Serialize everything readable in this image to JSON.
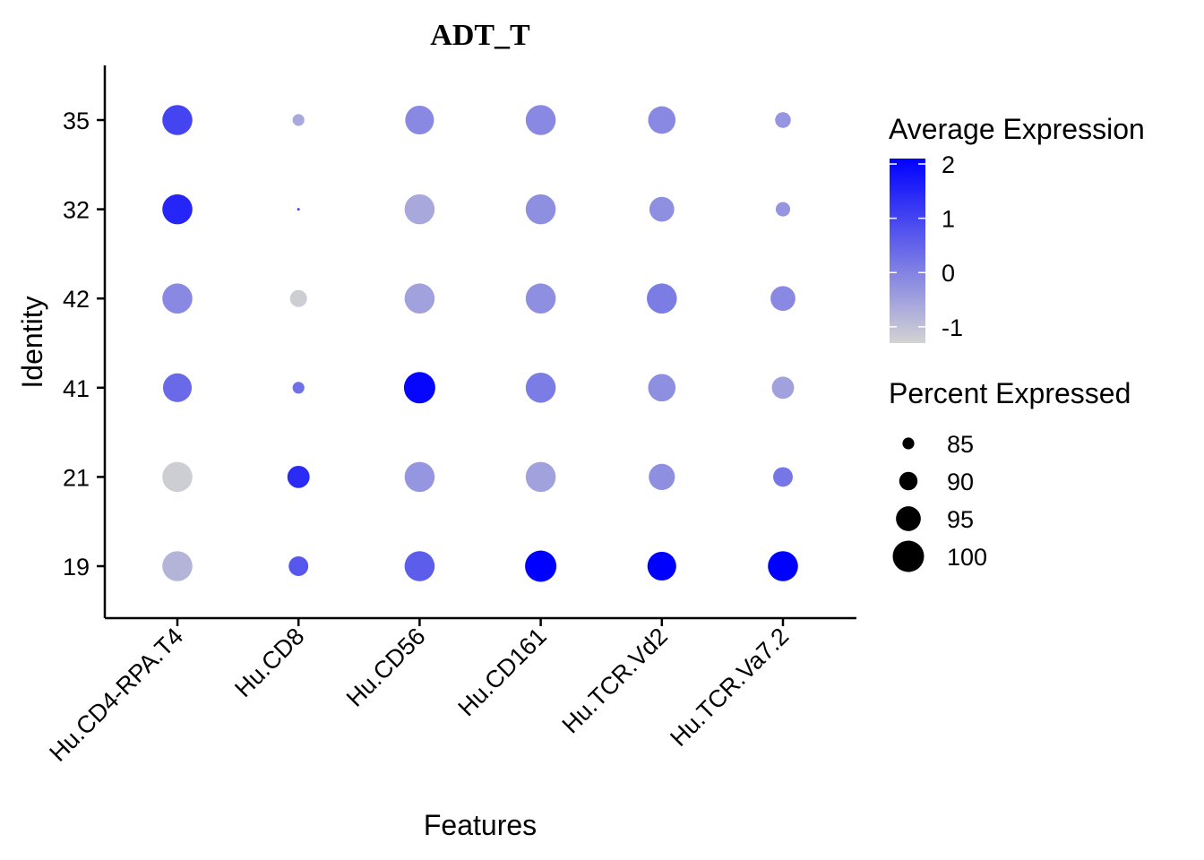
{
  "chart_data": {
    "type": "dotplot",
    "title": "ADT_T",
    "xlabel": "Features",
    "ylabel": "Identity",
    "features": [
      "Hu.CD4-RPA.T4",
      "Hu.CD8",
      "Hu.CD56",
      "Hu.CD161",
      "Hu.TCR.Vd2",
      "Hu.TCR.Va7.2"
    ],
    "identities": [
      "35",
      "32",
      "42",
      "41",
      "21",
      "19"
    ],
    "avg_expression": [
      [
        1.0,
        -0.6,
        -0.1,
        -0.1,
        -0.1,
        -0.3
      ],
      [
        1.5,
        1.0,
        -0.6,
        -0.2,
        -0.2,
        -0.3
      ],
      [
        -0.1,
        -1.2,
        -0.5,
        -0.2,
        0.1,
        -0.1
      ],
      [
        0.4,
        0.3,
        2.0,
        0.1,
        -0.2,
        -0.5
      ],
      [
        -1.2,
        1.4,
        -0.3,
        -0.5,
        -0.2,
        0.2
      ],
      [
        -0.8,
        0.7,
        0.6,
        2.1,
        2.1,
        2.1
      ]
    ],
    "pct_expressed": [
      [
        99,
        85,
        98,
        99,
        97,
        88
      ],
      [
        99,
        78,
        99,
        99,
        95,
        87
      ],
      [
        99,
        89,
        99,
        99,
        99,
        95
      ],
      [
        98,
        85,
        100,
        99,
        97,
        93
      ],
      [
        99,
        93,
        99,
        99,
        96,
        91
      ],
      [
        99,
        91,
        99,
        100,
        98,
        99
      ]
    ],
    "color_scale": {
      "title": "Average Expression",
      "low_color": "#d3d3d3",
      "high_color": "#0000ff",
      "min": -1.3,
      "max": 2.1,
      "ticks": [
        "2",
        "1",
        "0",
        "-1"
      ],
      "tick_values": [
        2,
        1,
        0,
        -1
      ]
    },
    "size_scale": {
      "title": "Percent Expressed",
      "labels": [
        "85",
        "90",
        "95",
        "100"
      ],
      "values": [
        85,
        90,
        95,
        100
      ],
      "min": 78,
      "max": 100,
      "color": "#000000"
    },
    "grid": false,
    "legend_position": "right"
  }
}
